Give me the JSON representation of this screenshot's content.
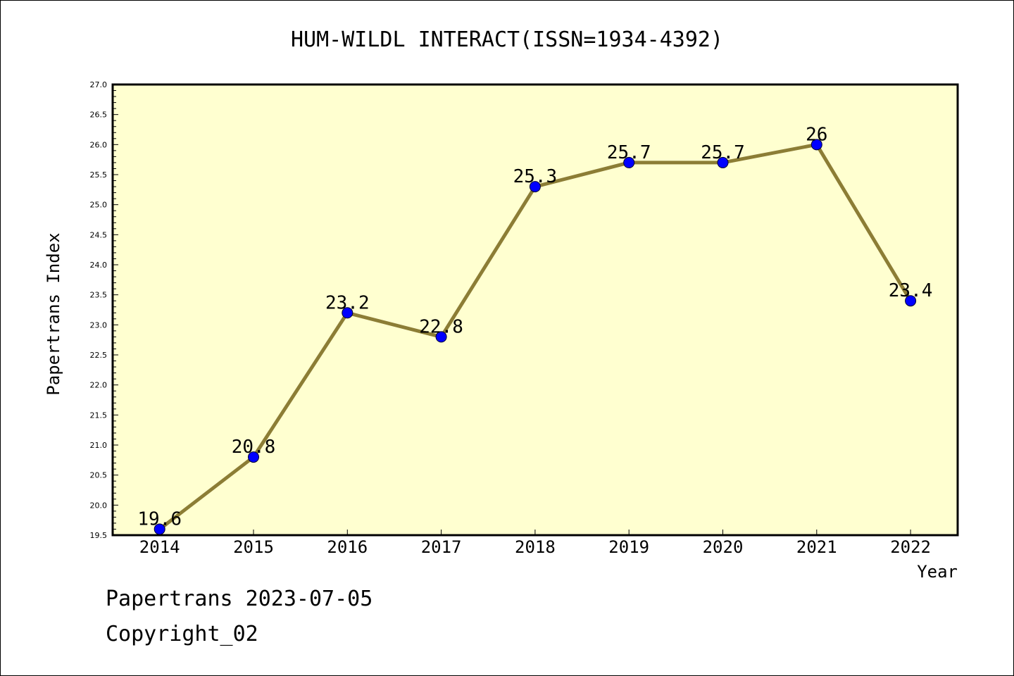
{
  "chart_data": {
    "type": "line",
    "title": "HUM-WILDL INTERACT(ISSN=1934-4392)",
    "xlabel": "Year",
    "ylabel": "Papertrans Index",
    "categories": [
      "2014",
      "2015",
      "2016",
      "2017",
      "2018",
      "2019",
      "2020",
      "2021",
      "2022"
    ],
    "series": [
      {
        "values": [
          19.6,
          20.8,
          23.2,
          22.8,
          25.3,
          25.7,
          25.7,
          26,
          23.4
        ]
      }
    ],
    "data_labels": [
      "19.6",
      "20.8",
      "23.2",
      "22.8",
      "25.3",
      "25.7",
      "25.7",
      "26",
      "23.4"
    ],
    "ylim": [
      19.5,
      27.0
    ],
    "yticks": [
      "19.5",
      "20.0",
      "20.5",
      "21.0",
      "21.5",
      "22.0",
      "22.5",
      "23.0",
      "23.5",
      "24.0",
      "24.5",
      "25.0",
      "25.5",
      "26.0",
      "26.5",
      "27.0"
    ],
    "grid": false,
    "legend": "none",
    "colors": {
      "plot_background": "#ffffd0",
      "line": "#8c7d35",
      "marker": "#0000ff",
      "axis": "#000000"
    }
  },
  "footer": {
    "date_line": "Papertrans 2023-07-05",
    "copyright": "Copyright_02"
  }
}
